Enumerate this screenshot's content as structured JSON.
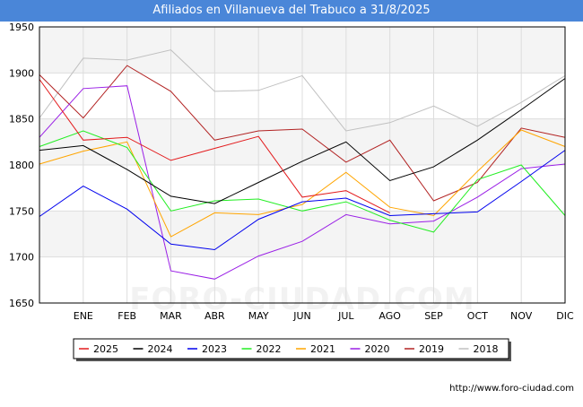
{
  "header": {
    "title": "Afiliados en Villanueva del Trabuco a 31/8/2025"
  },
  "watermark": "FORO-CIUDAD.COM",
  "footer": {
    "url": "http://www.foro-ciudad.com"
  },
  "chart_data": {
    "type": "line",
    "title": "Afiliados en Villanueva del Trabuco a 31/8/2025",
    "categories": [
      "DIC",
      "ENE",
      "FEB",
      "MAR",
      "ABR",
      "MAY",
      "JUN",
      "JUL",
      "AGO",
      "SEP",
      "OCT",
      "NOV",
      "DIC"
    ],
    "tick_labels": [
      "",
      "ENE",
      "FEB",
      "MAR",
      "ABR",
      "MAY",
      "JUN",
      "JUL",
      "AGO",
      "SEP",
      "OCT",
      "NOV",
      "DIC"
    ],
    "ylim": [
      1650,
      1950
    ],
    "yticks": [
      1650,
      1700,
      1750,
      1800,
      1850,
      1900,
      1950
    ],
    "legend_position": "bottom",
    "series": [
      {
        "name": "2025",
        "color": "#e31a1c",
        "values": [
          1893,
          1827,
          1830,
          1805,
          1818,
          1831,
          1765,
          1772,
          1748,
          null,
          null,
          null,
          null
        ]
      },
      {
        "name": "2024",
        "color": "#000000",
        "values": [
          1816,
          1821,
          1795,
          1766,
          1758,
          1781,
          1804,
          1825,
          1783,
          1798,
          1827,
          1860,
          1894
        ]
      },
      {
        "name": "2023",
        "color": "#0000ee",
        "values": [
          1744,
          1777,
          1752,
          1714,
          1708,
          1741,
          1760,
          1764,
          1745,
          1747,
          1749,
          1782,
          1816
        ]
      },
      {
        "name": "2022",
        "color": "#22ee22",
        "values": [
          1820,
          1837,
          1819,
          1750,
          1761,
          1763,
          1750,
          1760,
          1740,
          1727,
          1784,
          1800,
          1745
        ]
      },
      {
        "name": "2021",
        "color": "#ffa500",
        "values": [
          1801,
          1815,
          1825,
          1722,
          1748,
          1746,
          1757,
          1792,
          1754,
          1745,
          1793,
          1838,
          1820
        ]
      },
      {
        "name": "2020",
        "color": "#9a1fe6",
        "values": [
          1830,
          1883,
          1886,
          1685,
          1676,
          1701,
          1717,
          1746,
          1736,
          1739,
          1765,
          1796,
          1801
        ]
      },
      {
        "name": "2019",
        "color": "#b22222",
        "values": [
          1898,
          1851,
          1908,
          1880,
          1827,
          1837,
          1839,
          1803,
          1827,
          1761,
          1781,
          1840,
          1830
        ]
      },
      {
        "name": "2018",
        "color": "#c0c0c0",
        "values": [
          1851,
          1916,
          1914,
          1925,
          1880,
          1881,
          1897,
          1837,
          1846,
          1864,
          1842,
          1868,
          1897
        ]
      }
    ]
  }
}
